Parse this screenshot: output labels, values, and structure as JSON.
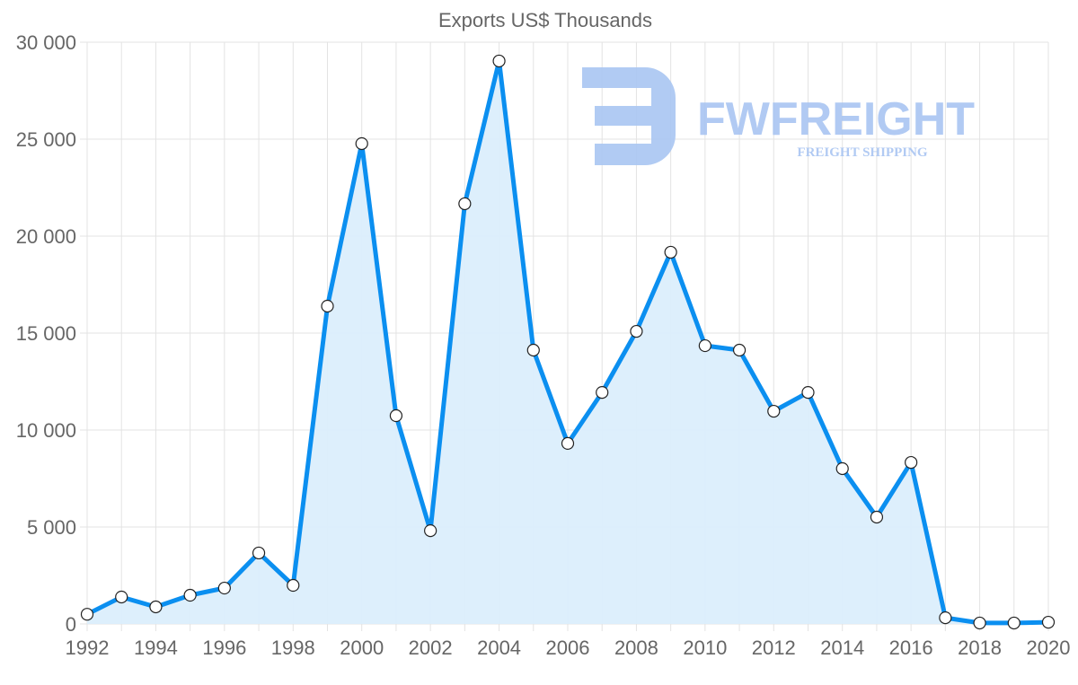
{
  "chart_data": {
    "type": "area",
    "title": "Exports US$ Thousands",
    "xlabel": "",
    "ylabel": "",
    "x": [
      1992,
      1993,
      1994,
      1995,
      1996,
      1997,
      1998,
      1999,
      2000,
      2001,
      2002,
      2003,
      2004,
      2005,
      2006,
      2007,
      2008,
      2009,
      2010,
      2011,
      2012,
      2013,
      2014,
      2015,
      2016,
      2017,
      2018,
      2019,
      2020
    ],
    "series": [
      {
        "name": "Exports US$ Thousands",
        "values": [
          500,
          1390,
          880,
          1480,
          1850,
          3660,
          1990,
          16390,
          24770,
          10740,
          4810,
          21670,
          29030,
          14120,
          9310,
          11940,
          15090,
          19170,
          14350,
          14120,
          10970,
          11940,
          8010,
          5510,
          8330,
          320,
          50,
          50,
          90
        ]
      }
    ],
    "ylim": [
      0,
      30000
    ],
    "xlim": [
      1992,
      2020
    ],
    "y_ticks": [
      "0",
      "5 000",
      "10 000",
      "15 000",
      "20 000",
      "25 000",
      "30 000"
    ],
    "y_tick_values": [
      0,
      5000,
      10000,
      15000,
      20000,
      25000,
      30000
    ],
    "x_ticks": [
      "1992",
      "1994",
      "1996",
      "1998",
      "2000",
      "2002",
      "2004",
      "2006",
      "2008",
      "2010",
      "2012",
      "2014",
      "2016",
      "2018",
      "2020"
    ],
    "x_tick_values": [
      1992,
      1994,
      1996,
      1998,
      2000,
      2002,
      2004,
      2006,
      2008,
      2010,
      2012,
      2014,
      2016,
      2018,
      2020
    ],
    "grid": true,
    "legend": "none",
    "colors": {
      "line": "#0b8ff0",
      "fill": "#dbeefc",
      "grid": "#e3e3e3",
      "watermark": "#a9c5f2"
    }
  },
  "watermark": {
    "name": "FWFREIGHT",
    "tagline": "FREIGHT SHIPPING"
  }
}
